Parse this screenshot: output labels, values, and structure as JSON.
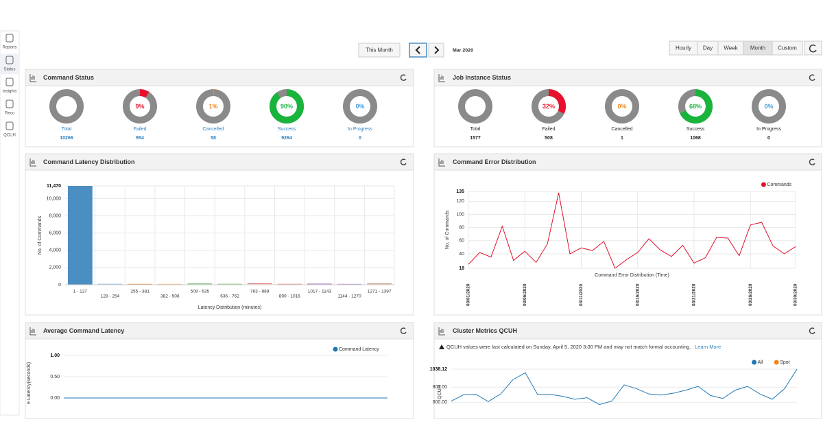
{
  "sidebar": {
    "items": [
      "Reports",
      "Status",
      "Insights",
      "Reco",
      "QCUH"
    ]
  },
  "toolbar": {
    "this_month": "This Month",
    "period": "Mar 2020",
    "ranges": [
      "Hourly",
      "Day",
      "Week",
      "Month",
      "Custom"
    ],
    "active_range": "Month"
  },
  "command_status": {
    "title": "Command Status",
    "label_color": "#2a7fc0",
    "items": [
      {
        "label": "Total",
        "count": 10266
      },
      {
        "label": "Failed",
        "count": 954,
        "percent": 9,
        "percent_label": "9%",
        "color": "#e8112d"
      },
      {
        "label": "Cancelled",
        "count": 58,
        "percent": 1,
        "percent_label": "1%",
        "color": "#f0861c"
      },
      {
        "label": "Success",
        "count": 9264,
        "percent": 90,
        "percent_label": "90%",
        "color": "#19b43c"
      },
      {
        "label": "In Progress",
        "count": 0,
        "percent": 0,
        "percent_label": "0%",
        "color": "#3a9ad9"
      }
    ]
  },
  "job_instance_status": {
    "title": "Job Instance Status",
    "label_color": "#222",
    "items": [
      {
        "label": "Total",
        "count": 1577
      },
      {
        "label": "Failed",
        "count": 508,
        "percent": 32,
        "percent_label": "32%",
        "color": "#e8112d"
      },
      {
        "label": "Cancelled",
        "count": 1,
        "percent": 0,
        "percent_label": "0%",
        "color": "#f0861c"
      },
      {
        "label": "Success",
        "count": 1068,
        "percent": 68,
        "percent_label": "68%",
        "color": "#19b43c"
      },
      {
        "label": "In Progress",
        "count": 0,
        "percent": 0,
        "percent_label": "0%",
        "color": "#3a9ad9"
      }
    ]
  },
  "latency": {
    "title": "Command Latency Distribution",
    "chart": {
      "type": "bar",
      "x_label": "Latency Distribution (minutes)",
      "y_label": "No. of Commands",
      "categories": [
        "1 - 127",
        "128 - 254",
        "255 - 381",
        "382 - 508",
        "509 - 635",
        "636 - 762",
        "763 - 889",
        "890 - 1016",
        "1017 - 1143",
        "1144 - 1270",
        "1271 - 1397"
      ],
      "values": [
        11470,
        30,
        20,
        20,
        60,
        40,
        70,
        30,
        50,
        20,
        60
      ],
      "colors": [
        "#4a8ec2",
        "#a0c4e4",
        "#f0a060",
        "#f5c080",
        "#60b060",
        "#a0d090",
        "#e06060",
        "#f0a0a0",
        "#a080c0",
        "#c0a0d0",
        "#c08060"
      ],
      "ylim": [
        0,
        11470
      ],
      "yticks": [
        0,
        {
          "value": 2000,
          "label": "2,000"
        },
        {
          "value": 4000,
          "label": "4,000"
        },
        {
          "value": 6000,
          "label": "6,000"
        },
        {
          "value": 8000,
          "label": "8,000"
        },
        {
          "value": 10000,
          "label": "10,000"
        },
        {
          "value": 11470,
          "label": "11,470"
        }
      ],
      "grid": true
    }
  },
  "errors": {
    "title": "Command Error Distribution",
    "chart": {
      "type": "line",
      "x_label": "Command Error Distribution (Time)",
      "y_label": "No. of Commands",
      "legend": "top-right",
      "categories": [
        "03/01/2020",
        null,
        null,
        null,
        null,
        "03/06/2020",
        null,
        null,
        null,
        null,
        "03/11/2020",
        null,
        null,
        null,
        null,
        "03/16/2020",
        null,
        null,
        null,
        null,
        "03/21/2020",
        null,
        null,
        null,
        null,
        "03/26/2020",
        null,
        null,
        null,
        "03/30/2020"
      ],
      "series": [
        {
          "name": "Commands",
          "color": "#e0102b",
          "values": [
            24,
            42,
            35,
            82,
            30,
            44,
            27,
            55,
            133,
            40,
            49,
            45,
            59,
            18,
            31,
            42,
            63,
            46,
            36,
            53,
            26,
            34,
            65,
            64,
            37,
            84,
            88,
            52,
            40,
            51
          ]
        }
      ],
      "ylim": [
        18,
        135
      ],
      "yticks": [
        18,
        40,
        60,
        80,
        100,
        120,
        135
      ],
      "grid": true
    }
  },
  "avg_latency": {
    "title": "Average Command Latency",
    "chart": {
      "type": "line",
      "y_label": "e Latency(seconds)",
      "legend": "top-right",
      "series": [
        {
          "name": "Command Latency",
          "color": "#1f77b4",
          "values": [
            0,
            0,
            0,
            0,
            0,
            0,
            0
          ]
        }
      ],
      "ylim": [
        -0.3,
        1
      ],
      "yticks": [
        {
          "value": 0,
          "label": "0.00"
        },
        {
          "value": 0.5,
          "label": "0.50"
        },
        {
          "value": 1,
          "label": "1.00"
        }
      ],
      "grid": true
    }
  },
  "qcuh": {
    "title": "Cluster Metrics QCUH",
    "note": "QCUH values were last calculated on Sunday, April 5, 2020 3:00 PM and may not match formal accounting.",
    "link": "Learn More",
    "chart": {
      "type": "line",
      "y_label": "QCUH",
      "legend": "top-right",
      "series": [
        {
          "name": "All",
          "color": "#1f77b4",
          "values": [
            615,
            700,
            705,
            610,
            710,
            900,
            990,
            700,
            705,
            680,
            640,
            660,
            570,
            615,
            830,
            780,
            710,
            695,
            720,
            760,
            810,
            690,
            650,
            760,
            810,
            710,
            640,
            780,
            1038.12
          ]
        },
        {
          "name": "Spot",
          "color": "#f0861c",
          "values": [
            null,
            null,
            null,
            null,
            null,
            null,
            null,
            null,
            null,
            null,
            null,
            null,
            null,
            null,
            null,
            null,
            null,
            null,
            null,
            null,
            null,
            null,
            null,
            null,
            null,
            null,
            null,
            null,
            null
          ]
        }
      ],
      "ylim": [
        430,
        1038.12
      ],
      "yticks": [
        {
          "value": 600,
          "label": "600.00"
        },
        {
          "value": 800,
          "label": "800.00"
        },
        1038.12
      ],
      "grid": true
    }
  }
}
